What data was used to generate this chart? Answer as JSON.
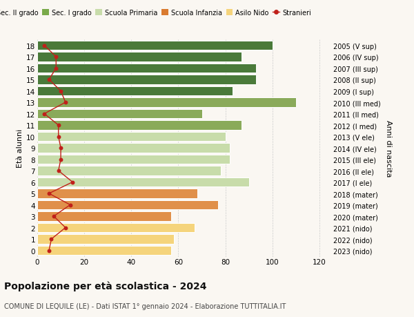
{
  "ages": [
    0,
    1,
    2,
    3,
    4,
    5,
    6,
    7,
    8,
    9,
    10,
    11,
    12,
    13,
    14,
    15,
    16,
    17,
    18
  ],
  "right_labels": [
    "2023 (nido)",
    "2022 (nido)",
    "2021 (nido)",
    "2020 (mater)",
    "2019 (mater)",
    "2018 (mater)",
    "2017 (I ele)",
    "2016 (II ele)",
    "2015 (III ele)",
    "2014 (IV ele)",
    "2013 (V ele)",
    "2012 (I med)",
    "2011 (II med)",
    "2010 (III med)",
    "2009 (I sup)",
    "2008 (II sup)",
    "2007 (III sup)",
    "2006 (IV sup)",
    "2005 (V sup)"
  ],
  "bar_values": [
    57,
    58,
    67,
    57,
    77,
    68,
    90,
    78,
    82,
    82,
    80,
    87,
    70,
    110,
    83,
    93,
    93,
    87,
    100
  ],
  "stranieri": [
    5,
    6,
    12,
    7,
    14,
    5,
    15,
    9,
    10,
    10,
    9,
    9,
    3,
    12,
    10,
    5,
    8,
    8,
    3
  ],
  "bar_colors": [
    "#f5d47c",
    "#f5d47c",
    "#f5d47c",
    "#e0904a",
    "#e0904a",
    "#e0904a",
    "#c8dcaa",
    "#c8dcaa",
    "#c8dcaa",
    "#c8dcaa",
    "#c8dcaa",
    "#8aaa5a",
    "#8aaa5a",
    "#8aaa5a",
    "#4a7a3a",
    "#4a7a3a",
    "#4a7a3a",
    "#4a7a3a",
    "#4a7a3a"
  ],
  "legend_labels": [
    "Sec. II grado",
    "Sec. I grado",
    "Scuola Primaria",
    "Scuola Infanzia",
    "Asilo Nido",
    "Stranieri"
  ],
  "legend_colors": [
    "#3d6b30",
    "#7aaa4a",
    "#c8dcaa",
    "#d97b30",
    "#f5d47c",
    "#c0201a"
  ],
  "title": "Popolazione per età scolastica - 2024",
  "subtitle": "COMUNE DI LEQUILE (LE) - Dati ISTAT 1° gennaio 2024 - Elaborazione TUTTITALIA.IT",
  "ylabel_left": "Età alunni",
  "ylabel_right": "Anni di nascita",
  "xlim": [
    0,
    125
  ],
  "bg_color": "#faf7f2",
  "grid_color": "#cccccc",
  "stranieri_color": "#c0201a"
}
